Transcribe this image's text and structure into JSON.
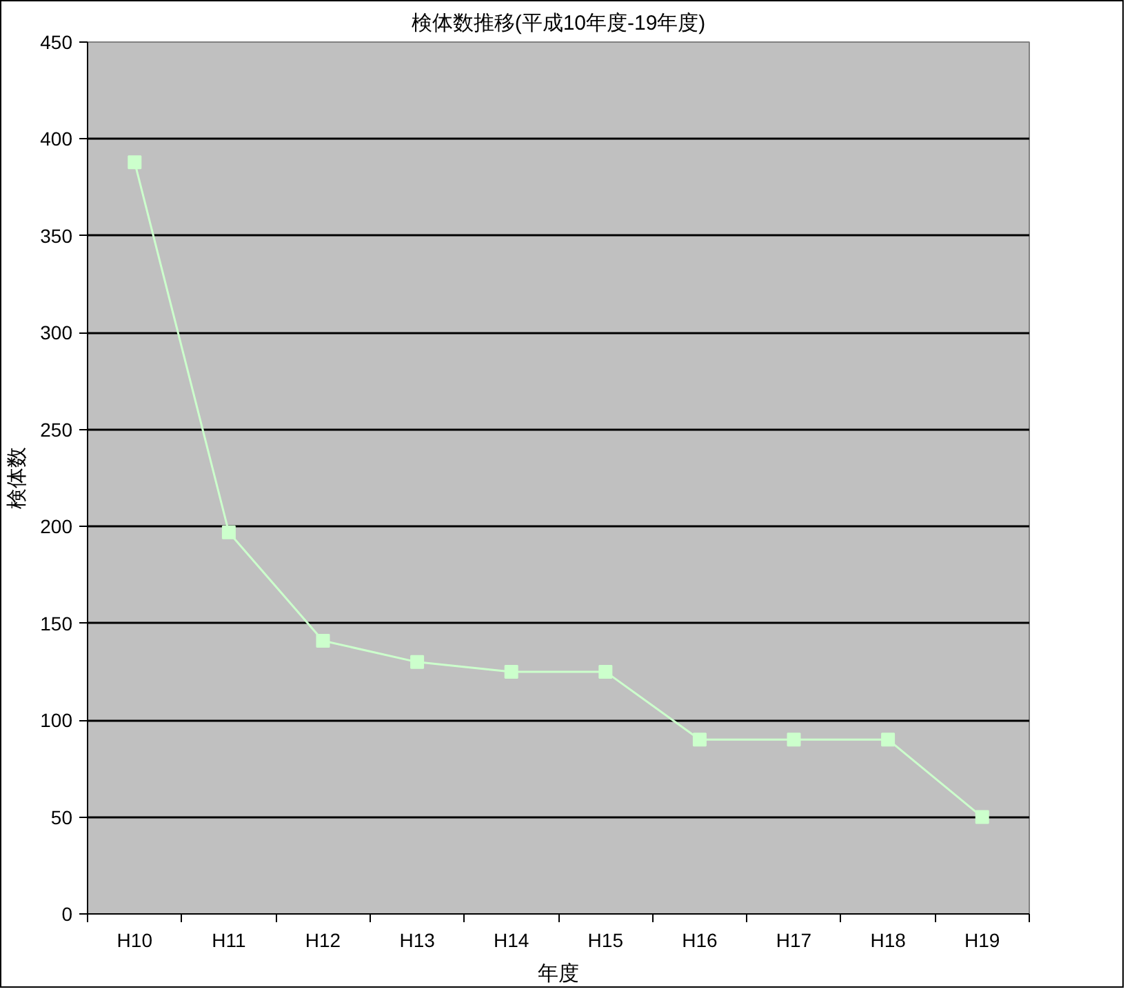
{
  "chart_data": {
    "type": "line",
    "title": "検体数推移(平成10年度-19年度)",
    "xlabel": "年度",
    "ylabel": "検体数",
    "categories": [
      "H10",
      "H11",
      "H12",
      "H13",
      "H14",
      "H15",
      "H16",
      "H17",
      "H18",
      "H19"
    ],
    "series": [
      {
        "color": "#ccffcc",
        "values": [
          388,
          197,
          141,
          130,
          125,
          125,
          90,
          90,
          90,
          50
        ]
      }
    ],
    "ylim": [
      0,
      450
    ],
    "yticks": [
      0,
      50,
      100,
      150,
      200,
      250,
      300,
      350,
      400,
      450
    ],
    "grid": "y",
    "marker": "square",
    "line_style": "solid"
  }
}
